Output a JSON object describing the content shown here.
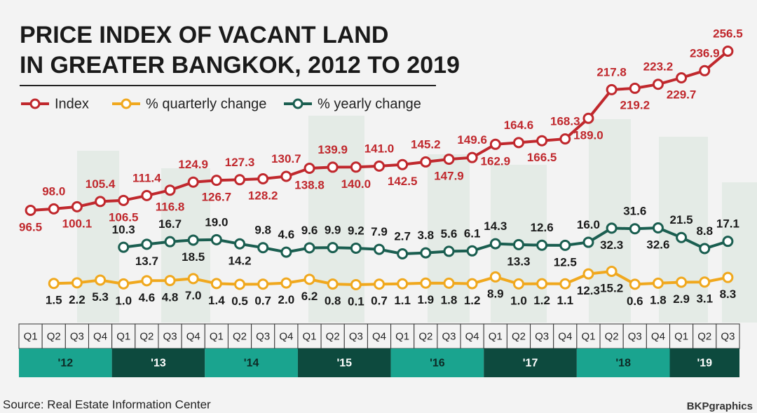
{
  "chart_data": {
    "type": "line",
    "title": [
      "PRICE INDEX OF VACANT LAND",
      "IN GREATER BANGKOK, 2012 TO 2019"
    ],
    "categories": [
      "Q1",
      "Q2",
      "Q3",
      "Q4",
      "Q1",
      "Q2",
      "Q3",
      "Q4",
      "Q1",
      "Q2",
      "Q3",
      "Q4",
      "Q1",
      "Q2",
      "Q3",
      "Q4",
      "Q1",
      "Q2",
      "Q3",
      "Q4",
      "Q1",
      "Q2",
      "Q3",
      "Q4",
      "Q1",
      "Q2",
      "Q3",
      "Q4",
      "Q1",
      "Q2",
      "Q3"
    ],
    "years": [
      "'12",
      "'13",
      "'14",
      "'15",
      "'16",
      "'17",
      "'18",
      "'19"
    ],
    "series": [
      {
        "name": "Index",
        "color": "#c0282d",
        "values": [
          96.5,
          98.0,
          100.1,
          105.4,
          106.5,
          111.4,
          116.8,
          124.9,
          126.7,
          127.3,
          128.2,
          130.7,
          138.8,
          139.9,
          140.0,
          141.0,
          142.5,
          145.2,
          147.9,
          149.6,
          162.9,
          164.6,
          166.5,
          168.3,
          189.0,
          217.8,
          219.2,
          223.2,
          229.7,
          236.9,
          256.5
        ],
        "value_labels": [
          "96.5",
          "98.0",
          "100.1",
          "105.4",
          "106.5",
          "111.4",
          "116.8",
          "124.9",
          "126.7",
          "127.3",
          "128.2",
          "130.7",
          "138.8",
          "139.9",
          "140.0",
          "141.0",
          "142.5",
          "145.2",
          "147.9",
          "149.6",
          "162.9",
          "164.6",
          "166.5",
          "168.3",
          "189.0",
          "217.8",
          "219.2",
          "223.2",
          "229.7",
          "236.9",
          "256.5"
        ]
      },
      {
        "name": "% quarterly change",
        "color": "#f0a81e",
        "values": [
          null,
          1.5,
          2.2,
          5.3,
          1.0,
          4.6,
          4.8,
          7.0,
          1.4,
          0.5,
          0.7,
          2.0,
          6.2,
          0.8,
          0.1,
          0.7,
          1.1,
          1.9,
          1.8,
          1.2,
          8.9,
          1.0,
          1.2,
          1.1,
          12.3,
          15.2,
          0.6,
          1.8,
          2.9,
          3.1,
          8.3
        ],
        "value_labels": [
          null,
          "1.5",
          "2.2",
          "5.3",
          "1.0",
          "4.6",
          "4.8",
          "7.0",
          "1.4",
          "0.5",
          "0.7",
          "2.0",
          "6.2",
          "0.8",
          "0.1",
          "0.7",
          "1.1",
          "1.9",
          "1.8",
          "1.2",
          "8.9",
          "1.0",
          "1.2",
          "1.1",
          "12.3",
          "15.2",
          "0.6",
          "1.8",
          "2.9",
          "3.1",
          "8.3"
        ]
      },
      {
        "name": "% yearly change",
        "color": "#1a5e50",
        "values": [
          null,
          null,
          null,
          null,
          10.3,
          13.7,
          16.7,
          18.5,
          19.0,
          14.2,
          9.8,
          4.6,
          9.6,
          9.9,
          9.2,
          7.9,
          2.7,
          3.8,
          5.6,
          6.1,
          14.3,
          13.3,
          12.6,
          12.5,
          16.0,
          32.3,
          31.6,
          32.6,
          21.5,
          8.8,
          17.1
        ],
        "value_labels": [
          null,
          null,
          null,
          null,
          "10.3",
          "13.7",
          "16.7",
          "18.5",
          "19.0",
          "14.2",
          "9.8",
          "4.6",
          "9.6",
          "9.9",
          "9.2",
          "7.9",
          "2.7",
          "3.8",
          "5.6",
          "6.1",
          "14.3",
          "13.3",
          "12.6",
          "12.5",
          "16.0",
          "32.3",
          "31.6",
          "32.6",
          "21.5",
          "8.8",
          "17.1"
        ]
      }
    ],
    "source": "Source: Real Estate Information Center",
    "credit": "BKPgraphics"
  }
}
